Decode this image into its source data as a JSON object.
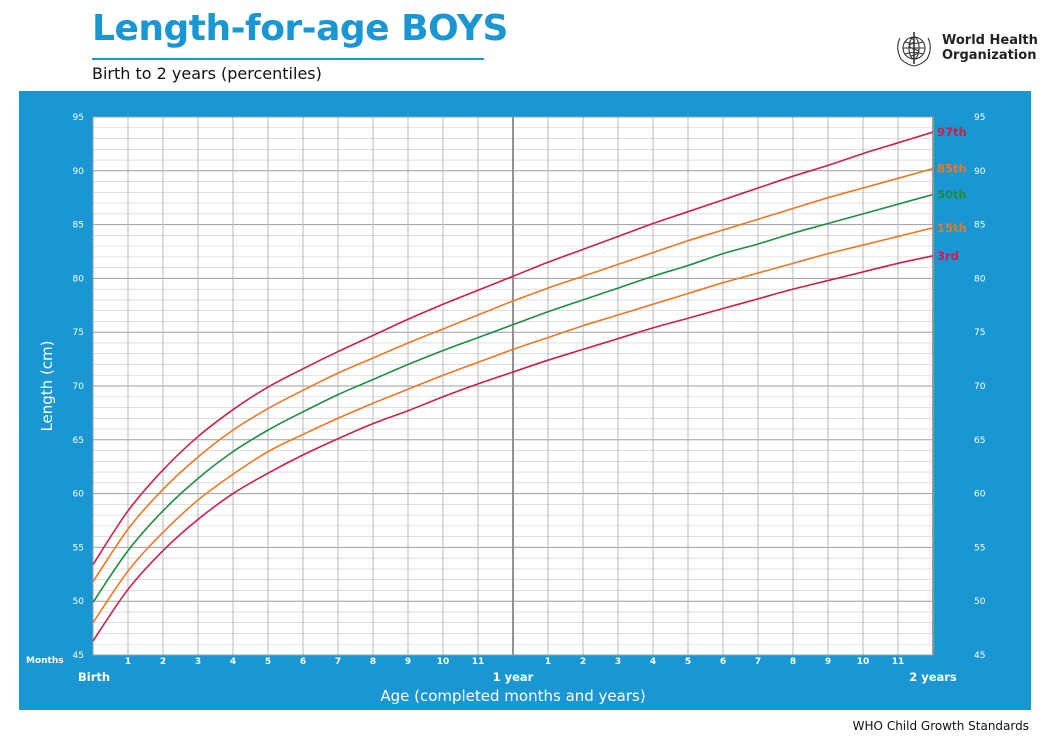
{
  "header": {
    "title": "Length-for-age BOYS",
    "subtitle": "Birth to 2 years (percentiles)",
    "org_line1": "World Health",
    "org_line2": "Organization",
    "logo_icon": "who-emblem-icon"
  },
  "footer": {
    "text": "WHO Child Growth Standards"
  },
  "colors": {
    "frame": "#1a96d2",
    "grid": "#b9bcc0",
    "red": "#cc1f4a",
    "orange": "#ee7722",
    "green": "#1f8c43"
  },
  "chart_data": {
    "type": "line",
    "ylabel": "Length (cm)",
    "xlabel": "Age (completed months and years)",
    "ylim": [
      45,
      95
    ],
    "xlim": [
      0,
      24
    ],
    "y_ticks": [
      "45",
      "50",
      "55",
      "60",
      "65",
      "70",
      "75",
      "80",
      "85",
      "90",
      "95"
    ],
    "x_axis_prefix": "Months",
    "x_tick_labels": [
      "1",
      "2",
      "3",
      "4",
      "5",
      "6",
      "7",
      "8",
      "9",
      "10",
      "11",
      "1",
      "2",
      "3",
      "4",
      "5",
      "6",
      "7",
      "8",
      "9",
      "10",
      "11"
    ],
    "x_major_labels": [
      {
        "month": 0,
        "label": "Birth"
      },
      {
        "month": 12,
        "label": "1 year"
      },
      {
        "month": 24,
        "label": "2 years"
      }
    ],
    "grid": true,
    "x": [
      0,
      1,
      2,
      3,
      4,
      5,
      6,
      7,
      8,
      9,
      10,
      11,
      12,
      13,
      14,
      15,
      16,
      17,
      18,
      19,
      20,
      21,
      22,
      23,
      24
    ],
    "series": [
      {
        "name": "97th",
        "color": "red",
        "values": [
          53.4,
          58.4,
          62.2,
          65.3,
          67.8,
          69.9,
          71.6,
          73.2,
          74.7,
          76.2,
          77.6,
          78.9,
          80.2,
          81.5,
          82.7,
          83.9,
          85.1,
          86.2,
          87.3,
          88.4,
          89.5,
          90.5,
          91.6,
          92.6,
          93.6
        ]
      },
      {
        "name": "85th",
        "color": "orange",
        "values": [
          51.8,
          56.7,
          60.4,
          63.4,
          65.9,
          67.9,
          69.6,
          71.2,
          72.6,
          74.0,
          75.3,
          76.6,
          77.9,
          79.1,
          80.2,
          81.3,
          82.4,
          83.5,
          84.5,
          85.5,
          86.5,
          87.5,
          88.4,
          89.3,
          90.2
        ]
      },
      {
        "name": "50th",
        "color": "green",
        "values": [
          49.9,
          54.7,
          58.4,
          61.4,
          63.9,
          65.9,
          67.6,
          69.2,
          70.6,
          72.0,
          73.3,
          74.5,
          75.7,
          76.9,
          78.0,
          79.1,
          80.2,
          81.2,
          82.3,
          83.2,
          84.2,
          85.1,
          86.0,
          86.9,
          87.8
        ]
      },
      {
        "name": "15th",
        "color": "orange",
        "values": [
          48.0,
          52.8,
          56.4,
          59.4,
          61.8,
          63.9,
          65.5,
          67.0,
          68.4,
          69.7,
          71.0,
          72.2,
          73.4,
          74.5,
          75.6,
          76.6,
          77.6,
          78.6,
          79.6,
          80.5,
          81.4,
          82.3,
          83.1,
          83.9,
          84.7
        ]
      },
      {
        "name": "3rd",
        "color": "red",
        "values": [
          46.3,
          51.1,
          54.7,
          57.6,
          60.0,
          61.9,
          63.6,
          65.1,
          66.5,
          67.7,
          69.0,
          70.2,
          71.3,
          72.4,
          73.4,
          74.4,
          75.4,
          76.3,
          77.2,
          78.1,
          79.0,
          79.8,
          80.6,
          81.4,
          82.1
        ]
      }
    ]
  }
}
